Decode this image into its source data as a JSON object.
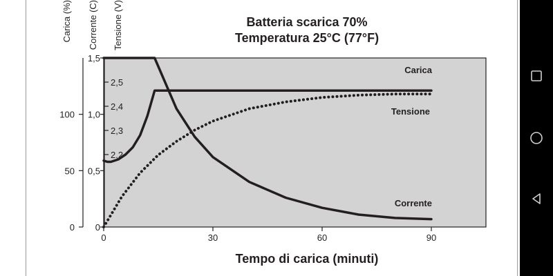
{
  "chart_data": {
    "type": "line",
    "title": "Batteria scarica 70%",
    "subtitle": "Temperatura 25°C (77°F)",
    "xlabel": "Tempo di carica (minuti)",
    "x_ticks": [
      0,
      30,
      60,
      90
    ],
    "xlim": [
      0,
      105
    ],
    "axes": [
      {
        "label": "Carica (%)",
        "ticks": [
          "0",
          "50",
          "100"
        ],
        "tick_values": [
          0,
          50,
          100
        ],
        "range": [
          0,
          150
        ]
      },
      {
        "label": "Corrente (C)",
        "ticks": [
          "0",
          "0,5",
          "1,0",
          "1,5"
        ],
        "tick_values": [
          0,
          0.5,
          1.0,
          1.5
        ],
        "range": [
          0,
          1.5
        ]
      },
      {
        "label": "Tensione (V)",
        "ticks": [
          "2,2",
          "2,3",
          "2,4",
          "2,5"
        ],
        "tick_values": [
          2.2,
          2.3,
          2.4,
          2.5
        ],
        "range": [
          1.9,
          2.6
        ]
      }
    ],
    "series": [
      {
        "name": "Carica",
        "style": "dotted",
        "axis": "Carica (%)",
        "x": [
          0,
          5,
          10,
          15,
          20,
          25,
          30,
          40,
          50,
          60,
          70,
          80,
          90
        ],
        "y": [
          0,
          27,
          48,
          64,
          76,
          86,
          94,
          105,
          111,
          115,
          117,
          118,
          118
        ]
      },
      {
        "name": "Tensione",
        "style": "solid",
        "axis": "Tensione (V)",
        "x": [
          0,
          1,
          2,
          4,
          6,
          8,
          10,
          12,
          14,
          30,
          60,
          90
        ],
        "y": [
          2.175,
          2.17,
          2.17,
          2.18,
          2.2,
          2.23,
          2.28,
          2.36,
          2.465,
          2.465,
          2.465,
          2.465
        ]
      },
      {
        "name": "Corrente",
        "style": "solid",
        "axis": "Corrente (C)",
        "x": [
          0,
          14,
          20,
          25,
          30,
          40,
          50,
          60,
          70,
          80,
          90
        ],
        "y": [
          1.5,
          1.5,
          1.05,
          0.8,
          0.62,
          0.4,
          0.26,
          0.17,
          0.11,
          0.08,
          0.07
        ]
      }
    ],
    "grid": false,
    "background": "#d3d3d3",
    "line_color": "#231f20"
  },
  "nav": {
    "recents": "recents-icon",
    "home": "home-icon",
    "back": "back-icon"
  }
}
